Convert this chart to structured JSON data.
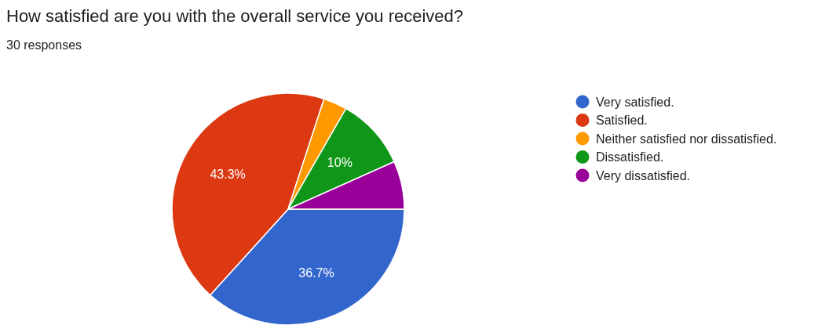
{
  "chart_data": {
    "type": "pie",
    "title": "How satisfied are you with the overall service you received?",
    "subtitle": "30 responses",
    "categories": [
      "Very satisfied.",
      "Satisfied.",
      "Neither satisfied nor dissatisfied.",
      "Dissatisfied.",
      "Very dissatisfied."
    ],
    "values": [
      36.7,
      43.3,
      3.3,
      10,
      6.7
    ],
    "colors": [
      "#3366cc",
      "#dc3912",
      "#ff9900",
      "#109618",
      "#990099"
    ],
    "value_labels": [
      "36.7%",
      "43.3%",
      null,
      "10%",
      null
    ],
    "legend": "right"
  }
}
